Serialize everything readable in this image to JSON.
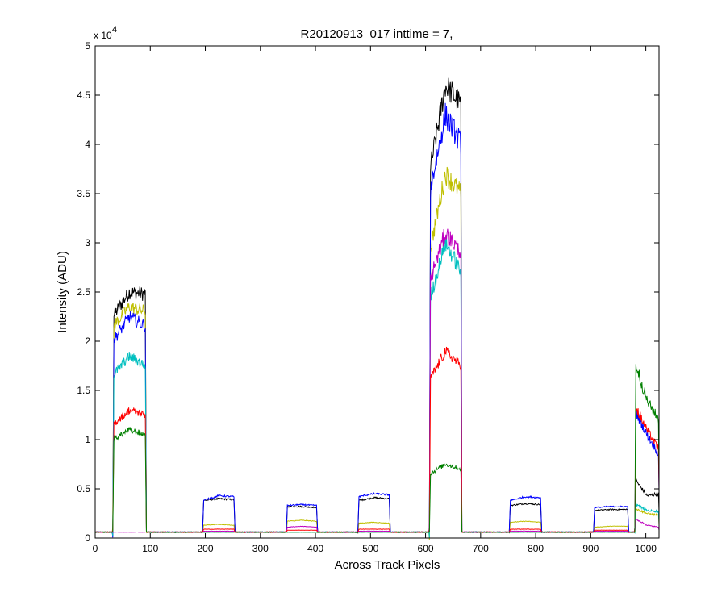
{
  "chart_data": {
    "type": "line",
    "title": "R20120913_017 inttime = 7,",
    "xlabel": "Across Track Pixels",
    "ylabel": "Intensity (ADU)",
    "y_multiplier": "x 10",
    "y_multiplier_exponent": "4",
    "xlim": [
      0,
      1024
    ],
    "ylim": [
      0,
      50000
    ],
    "x_ticks": [
      0,
      100,
      200,
      300,
      400,
      500,
      600,
      700,
      800,
      900,
      1000
    ],
    "x_tick_labels": [
      "0",
      "100",
      "200",
      "300",
      "400",
      "500",
      "600",
      "700",
      "800",
      "900",
      "1000"
    ],
    "y_ticks": [
      0,
      5000,
      10000,
      15000,
      20000,
      25000,
      30000,
      35000,
      40000,
      45000,
      50000
    ],
    "y_tick_labels": [
      "0",
      "0.5",
      "1",
      "1.5",
      "2",
      "2.5",
      "3",
      "3.5",
      "4",
      "4.5",
      "5"
    ],
    "grid": false,
    "baseline": 600,
    "segments": [
      {
        "x_start": 32,
        "x_end": 92,
        "noise": 0.03
      },
      {
        "x_start": 195,
        "x_end": 253,
        "noise": 0.02
      },
      {
        "x_start": 347,
        "x_end": 403,
        "noise": 0.02
      },
      {
        "x_start": 477,
        "x_end": 535,
        "noise": 0.02
      },
      {
        "x_start": 607,
        "x_end": 665,
        "noise": 0.03
      },
      {
        "x_start": 752,
        "x_end": 810,
        "noise": 0.02
      },
      {
        "x_start": 905,
        "x_end": 968,
        "noise": 0.02
      },
      {
        "x_start": 980,
        "x_end": 1024,
        "noise": 0.04
      }
    ],
    "series": [
      {
        "color": "#000000",
        "profiles": [
          [
            22500,
            25000,
            24800
          ],
          [
            3800,
            4000,
            3900
          ],
          [
            3200,
            3200,
            3100
          ],
          [
            3800,
            4100,
            4000
          ],
          [
            37000,
            46000,
            44000
          ],
          [
            3300,
            3500,
            3400
          ],
          [
            2800,
            2900,
            2900
          ],
          [
            6000,
            4300,
            4500
          ]
        ]
      },
      {
        "color": "#bfbf00",
        "profiles": [
          [
            21500,
            23500,
            23000
          ],
          [
            1300,
            1400,
            1300
          ],
          [
            1700,
            1800,
            1700
          ],
          [
            1500,
            1600,
            1500
          ],
          [
            29000,
            37000,
            35000
          ],
          [
            1600,
            1700,
            1600
          ],
          [
            1100,
            1200,
            1200
          ],
          [
            3000,
            2500,
            2300
          ]
        ]
      },
      {
        "color": "#0000ff",
        "profiles": [
          [
            20000,
            22500,
            21500
          ],
          [
            3800,
            4300,
            4200
          ],
          [
            3300,
            3400,
            3300
          ],
          [
            4200,
            4500,
            4400
          ],
          [
            35000,
            43000,
            40000
          ],
          [
            3800,
            4200,
            4100
          ],
          [
            3100,
            3200,
            3200
          ],
          [
            13000,
            10500,
            8500
          ]
        ]
      },
      {
        "color": "#00bfbf",
        "profiles": [
          [
            16500,
            18500,
            17500
          ],
          [
            600,
            600,
            600
          ],
          [
            600,
            600,
            600
          ],
          [
            600,
            600,
            600
          ],
          [
            24000,
            30000,
            27000
          ],
          [
            600,
            600,
            600
          ],
          [
            600,
            600,
            600
          ],
          [
            3500,
            2800,
            2700
          ]
        ]
      },
      {
        "color": "#bf00bf",
        "profiles": [
          [
            600,
            600,
            600
          ],
          [
            700,
            700,
            700
          ],
          [
            1100,
            1200,
            1100
          ],
          [
            700,
            700,
            700
          ],
          [
            26000,
            31000,
            29000
          ],
          [
            700,
            700,
            700
          ],
          [
            700,
            700,
            700
          ],
          [
            2000,
            1300,
            1100
          ]
        ]
      },
      {
        "color": "#ff0000",
        "profiles": [
          [
            11500,
            13000,
            12500
          ],
          [
            900,
            900,
            900
          ],
          [
            800,
            800,
            800
          ],
          [
            900,
            900,
            900
          ],
          [
            16000,
            19000,
            17500
          ],
          [
            900,
            900,
            900
          ],
          [
            800,
            800,
            800
          ],
          [
            13500,
            11000,
            9000
          ]
        ]
      },
      {
        "color": "#008000",
        "profiles": [
          [
            10000,
            11000,
            10500
          ],
          [
            600,
            600,
            600
          ],
          [
            600,
            600,
            600
          ],
          [
            600,
            600,
            600
          ],
          [
            6500,
            7500,
            7000
          ],
          [
            600,
            600,
            600
          ],
          [
            600,
            600,
            600
          ],
          [
            18000,
            14000,
            12000
          ]
        ]
      }
    ]
  }
}
